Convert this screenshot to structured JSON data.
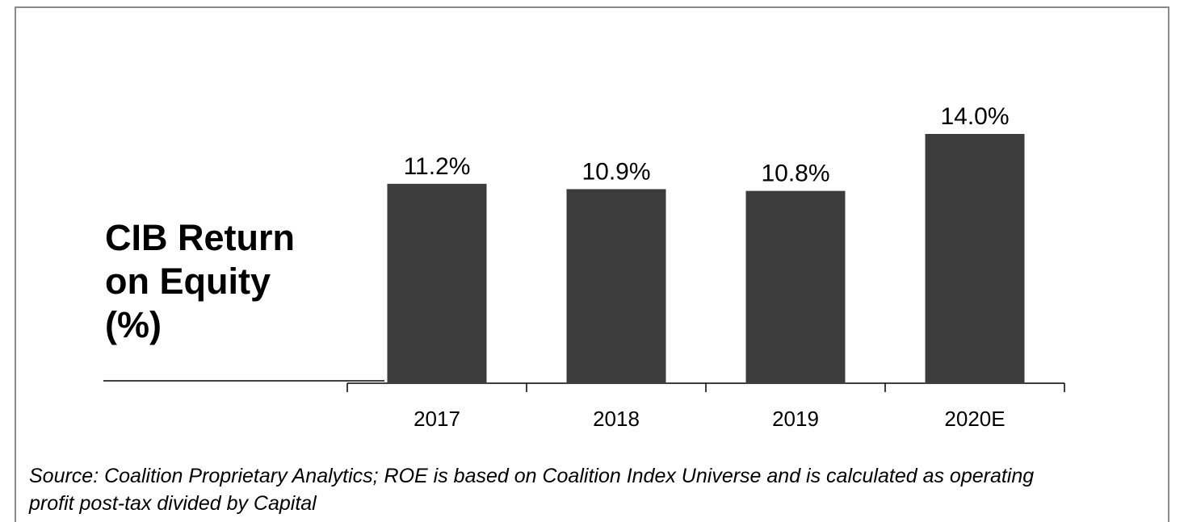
{
  "chart_data": {
    "type": "bar",
    "title": "CIB Return on Equity (%)",
    "categories": [
      "2017",
      "2018",
      "2019",
      "2020E"
    ],
    "values": [
      11.2,
      10.9,
      10.8,
      14.0
    ],
    "value_labels": [
      "11.2%",
      "10.9%",
      "10.8%",
      "14.0%"
    ],
    "color": "#3c3c3c",
    "note": "Source: Coalition Proprietary Analytics; ROE is based on Coalition Index Universe and is calculated as operating profit post-tax divided by Capital"
  }
}
